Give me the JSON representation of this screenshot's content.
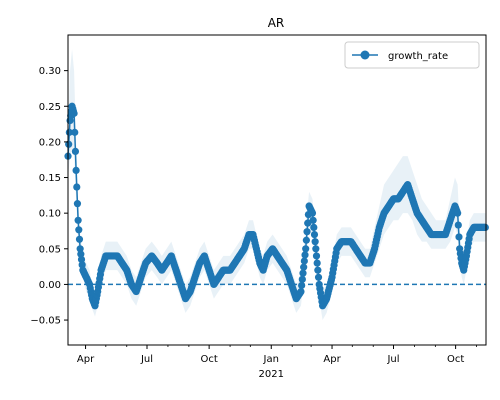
{
  "chart_data": {
    "type": "line",
    "title": "AR",
    "xlabel": "",
    "ylabel": "",
    "year_label": "2021",
    "xlim": [
      "2020-03-06",
      "2021-11-15"
    ],
    "ylim": [
      -0.085,
      0.35
    ],
    "x_ticks": [
      {
        "date": "2020-04-01",
        "label": "Apr"
      },
      {
        "date": "2020-07-01",
        "label": "Jul"
      },
      {
        "date": "2020-10-01",
        "label": "Oct"
      },
      {
        "date": "2021-01-01",
        "label": "Jan"
      },
      {
        "date": "2021-04-01",
        "label": "Apr"
      },
      {
        "date": "2021-07-01",
        "label": "Jul"
      },
      {
        "date": "2021-10-01",
        "label": "Oct"
      }
    ],
    "minor_x_ticks": [
      "2020-05-01",
      "2020-06-01",
      "2020-08-01",
      "2020-09-01",
      "2020-11-01",
      "2020-12-01",
      "2021-02-01",
      "2021-03-01",
      "2021-05-01",
      "2021-06-01",
      "2021-08-01",
      "2021-09-01",
      "2021-11-01"
    ],
    "y_ticks": [
      -0.05,
      0.0,
      0.05,
      0.1,
      0.15,
      0.2,
      0.25,
      0.3
    ],
    "y_tick_labels": [
      "−0.05",
      "0.00",
      "0.05",
      "0.10",
      "0.15",
      "0.20",
      "0.25",
      "0.30"
    ],
    "reference_line": {
      "y": 0.0,
      "style": "dashed",
      "color": "#1f77b4"
    },
    "legend": {
      "position": "top-right",
      "entries": [
        "growth_rate"
      ]
    },
    "series": [
      {
        "name": "growth_rate",
        "color": "#1f77b4",
        "marker": "circle",
        "band_color": "#1f77b4",
        "band_opacity": 0.1,
        "points": [
          [
            "2020-03-06",
            0.18,
            0.15,
            0.21
          ],
          [
            "2020-03-09",
            0.23,
            0.18,
            0.3
          ],
          [
            "2020-03-12",
            0.25,
            0.19,
            0.33
          ],
          [
            "2020-03-15",
            0.24,
            0.18,
            0.3
          ],
          [
            "2020-03-18",
            0.16,
            0.12,
            0.2
          ],
          [
            "2020-03-21",
            0.09,
            0.06,
            0.12
          ],
          [
            "2020-03-24",
            0.05,
            0.03,
            0.07
          ],
          [
            "2020-03-28",
            0.02,
            0.01,
            0.04
          ],
          [
            "2020-04-02",
            0.01,
            -0.01,
            0.03
          ],
          [
            "2020-04-07",
            0.0,
            -0.02,
            0.02
          ],
          [
            "2020-04-11",
            -0.02,
            -0.035,
            -0.005
          ],
          [
            "2020-04-15",
            -0.03,
            -0.045,
            -0.015
          ],
          [
            "2020-04-19",
            -0.01,
            -0.03,
            0.01
          ],
          [
            "2020-04-24",
            0.02,
            0.0,
            0.04
          ],
          [
            "2020-05-01",
            0.04,
            0.02,
            0.06
          ],
          [
            "2020-05-10",
            0.04,
            0.02,
            0.06
          ],
          [
            "2020-05-18",
            0.04,
            0.02,
            0.06
          ],
          [
            "2020-05-25",
            0.03,
            0.01,
            0.05
          ],
          [
            "2020-06-01",
            0.02,
            0.0,
            0.04
          ],
          [
            "2020-06-08",
            0.0,
            -0.02,
            0.02
          ],
          [
            "2020-06-15",
            -0.01,
            -0.03,
            0.01
          ],
          [
            "2020-06-22",
            0.01,
            -0.01,
            0.03
          ],
          [
            "2020-06-29",
            0.03,
            0.01,
            0.05
          ],
          [
            "2020-07-08",
            0.04,
            0.02,
            0.06
          ],
          [
            "2020-07-16",
            0.03,
            0.01,
            0.05
          ],
          [
            "2020-07-23",
            0.02,
            0.0,
            0.04
          ],
          [
            "2020-07-30",
            0.03,
            0.01,
            0.05
          ],
          [
            "2020-08-06",
            0.04,
            0.02,
            0.06
          ],
          [
            "2020-08-13",
            0.02,
            0.0,
            0.04
          ],
          [
            "2020-08-20",
            0.0,
            -0.02,
            0.02
          ],
          [
            "2020-08-27",
            -0.02,
            -0.04,
            0.0
          ],
          [
            "2020-09-03",
            -0.01,
            -0.03,
            0.01
          ],
          [
            "2020-09-10",
            0.01,
            -0.01,
            0.03
          ],
          [
            "2020-09-17",
            0.03,
            0.01,
            0.05
          ],
          [
            "2020-09-24",
            0.04,
            0.02,
            0.06
          ],
          [
            "2020-10-01",
            0.02,
            0.0,
            0.04
          ],
          [
            "2020-10-08",
            0.0,
            -0.02,
            0.02
          ],
          [
            "2020-10-15",
            0.01,
            -0.01,
            0.03
          ],
          [
            "2020-10-22",
            0.02,
            0.0,
            0.04
          ],
          [
            "2020-11-01",
            0.02,
            0.0,
            0.04
          ],
          [
            "2020-11-08",
            0.03,
            0.01,
            0.05
          ],
          [
            "2020-11-15",
            0.04,
            0.02,
            0.06
          ],
          [
            "2020-11-22",
            0.05,
            0.03,
            0.07
          ],
          [
            "2020-11-29",
            0.07,
            0.05,
            0.09
          ],
          [
            "2020-12-05",
            0.07,
            0.05,
            0.09
          ],
          [
            "2020-12-10",
            0.05,
            0.03,
            0.07
          ],
          [
            "2020-12-15",
            0.03,
            0.01,
            0.05
          ],
          [
            "2020-12-20",
            0.02,
            0.0,
            0.04
          ],
          [
            "2020-12-26",
            0.04,
            0.02,
            0.06
          ],
          [
            "2021-01-03",
            0.05,
            0.03,
            0.07
          ],
          [
            "2021-01-10",
            0.04,
            0.02,
            0.06
          ],
          [
            "2021-01-17",
            0.03,
            0.01,
            0.05
          ],
          [
            "2021-01-24",
            0.02,
            0.0,
            0.04
          ],
          [
            "2021-01-31",
            0.0,
            -0.02,
            0.02
          ],
          [
            "2021-02-07",
            -0.02,
            -0.04,
            0.0
          ],
          [
            "2021-02-14",
            -0.01,
            -0.03,
            0.01
          ],
          [
            "2021-02-21",
            0.05,
            0.03,
            0.08
          ],
          [
            "2021-02-26",
            0.11,
            0.08,
            0.13
          ],
          [
            "2021-03-03",
            0.1,
            0.07,
            0.12
          ],
          [
            "2021-03-08",
            0.05,
            0.02,
            0.07
          ],
          [
            "2021-03-13",
            0.0,
            -0.02,
            0.02
          ],
          [
            "2021-03-18",
            -0.03,
            -0.05,
            -0.01
          ],
          [
            "2021-03-24",
            -0.02,
            -0.04,
            0.0
          ],
          [
            "2021-04-01",
            0.01,
            -0.01,
            0.03
          ],
          [
            "2021-04-08",
            0.05,
            0.03,
            0.07
          ],
          [
            "2021-04-15",
            0.06,
            0.04,
            0.08
          ],
          [
            "2021-04-22",
            0.06,
            0.04,
            0.08
          ],
          [
            "2021-04-29",
            0.06,
            0.04,
            0.08
          ],
          [
            "2021-05-06",
            0.05,
            0.03,
            0.07
          ],
          [
            "2021-05-13",
            0.04,
            0.02,
            0.06
          ],
          [
            "2021-05-20",
            0.03,
            0.01,
            0.05
          ],
          [
            "2021-05-27",
            0.03,
            0.01,
            0.05
          ],
          [
            "2021-06-03",
            0.05,
            0.03,
            0.08
          ],
          [
            "2021-06-10",
            0.08,
            0.05,
            0.11
          ],
          [
            "2021-06-17",
            0.1,
            0.07,
            0.14
          ],
          [
            "2021-06-24",
            0.11,
            0.08,
            0.15
          ],
          [
            "2021-07-01",
            0.12,
            0.09,
            0.16
          ],
          [
            "2021-07-08",
            0.12,
            0.09,
            0.17
          ],
          [
            "2021-07-15",
            0.13,
            0.1,
            0.18
          ],
          [
            "2021-07-22",
            0.14,
            0.1,
            0.18
          ],
          [
            "2021-07-29",
            0.12,
            0.09,
            0.16
          ],
          [
            "2021-08-05",
            0.1,
            0.07,
            0.14
          ],
          [
            "2021-08-12",
            0.09,
            0.06,
            0.12
          ],
          [
            "2021-08-19",
            0.08,
            0.06,
            0.11
          ],
          [
            "2021-08-26",
            0.07,
            0.05,
            0.1
          ],
          [
            "2021-09-02",
            0.07,
            0.05,
            0.09
          ],
          [
            "2021-09-09",
            0.07,
            0.05,
            0.09
          ],
          [
            "2021-09-16",
            0.07,
            0.05,
            0.09
          ],
          [
            "2021-09-23",
            0.09,
            0.06,
            0.12
          ],
          [
            "2021-09-30",
            0.11,
            0.08,
            0.15
          ],
          [
            "2021-10-04",
            0.1,
            0.07,
            0.14
          ],
          [
            "2021-10-07",
            0.05,
            0.03,
            0.08
          ],
          [
            "2021-10-10",
            0.03,
            0.01,
            0.05
          ],
          [
            "2021-10-13",
            0.02,
            0.0,
            0.04
          ],
          [
            "2021-10-17",
            0.04,
            0.02,
            0.06
          ],
          [
            "2021-10-22",
            0.07,
            0.05,
            0.09
          ],
          [
            "2021-10-28",
            0.08,
            0.06,
            0.1
          ],
          [
            "2021-11-05",
            0.08,
            0.06,
            0.1
          ],
          [
            "2021-11-14",
            0.08,
            0.06,
            0.1
          ]
        ]
      }
    ]
  }
}
